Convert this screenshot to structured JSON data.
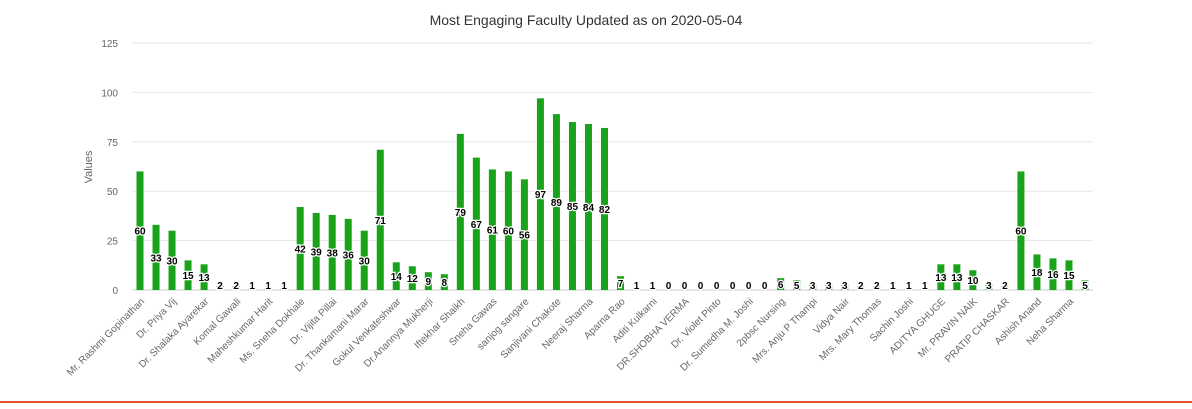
{
  "chart_data": {
    "type": "bar",
    "title": "Most Engaging Faculty Updated as on 2020-05-04",
    "xlabel": "",
    "ylabel": "Values",
    "ylim": [
      0,
      125
    ],
    "yticks": [
      0,
      25,
      50,
      75,
      100,
      125
    ],
    "grid": true,
    "legend": "none",
    "bar_color": "#1aa31a",
    "accent_rule_color": "#e0532a",
    "categories": [
      {
        "label": "Mr. Rashmi Gopinathan",
        "value": 60
      },
      {
        "label": "",
        "value": 33
      },
      {
        "label": "Dr. Priya Vij",
        "value": 30
      },
      {
        "label": "",
        "value": 15
      },
      {
        "label": "Dr. Shalaka Ayarekar",
        "value": 13
      },
      {
        "label": "",
        "value": 2
      },
      {
        "label": "Komal Gawali",
        "value": 2
      },
      {
        "label": "",
        "value": 1
      },
      {
        "label": "Maheshkumar Harit",
        "value": 1
      },
      {
        "label": "",
        "value": 1
      },
      {
        "label": "Ms. Sneha Dokhale",
        "value": 42
      },
      {
        "label": "",
        "value": 39
      },
      {
        "label": "Dr. Vijita Pillai",
        "value": 38
      },
      {
        "label": "",
        "value": 36
      },
      {
        "label": "Dr. Thankamani Marar",
        "value": 30
      },
      {
        "label": "",
        "value": 71
      },
      {
        "label": "Gokul Venkateshwar",
        "value": 14
      },
      {
        "label": "",
        "value": 12
      },
      {
        "label": "Dr.Anannya Mukherji",
        "value": 9
      },
      {
        "label": "",
        "value": 8
      },
      {
        "label": "Iftekhar Shaikh",
        "value": 79
      },
      {
        "label": "",
        "value": 67
      },
      {
        "label": "Sneha Gawas",
        "value": 61
      },
      {
        "label": "",
        "value": 60
      },
      {
        "label": "sanjog sangare",
        "value": 56
      },
      {
        "label": "",
        "value": 97
      },
      {
        "label": "Sanjivani Chakote",
        "value": 89
      },
      {
        "label": "",
        "value": 85
      },
      {
        "label": "Neeraj Sharma",
        "value": 84
      },
      {
        "label": "",
        "value": 82
      },
      {
        "label": "Aparna Rao",
        "value": 7
      },
      {
        "label": "",
        "value": 1
      },
      {
        "label": "Aditi Kulkarni",
        "value": 1
      },
      {
        "label": "",
        "value": 0
      },
      {
        "label": "DR.SHOBHA VERMA",
        "value": 0
      },
      {
        "label": "",
        "value": 0
      },
      {
        "label": "Dr. Violet Pinto",
        "value": 0
      },
      {
        "label": "",
        "value": 0
      },
      {
        "label": "Dr. Sumedha M. Joshi",
        "value": 0
      },
      {
        "label": "",
        "value": 0
      },
      {
        "label": "2pbsc Nursing",
        "value": 6
      },
      {
        "label": "",
        "value": 5
      },
      {
        "label": "Mrs. Anju P Thampi",
        "value": 3
      },
      {
        "label": "",
        "value": 3
      },
      {
        "label": "Vidya Nair",
        "value": 3
      },
      {
        "label": "",
        "value": 2
      },
      {
        "label": "Mrs. Mary Thomas",
        "value": 2
      },
      {
        "label": "",
        "value": 1
      },
      {
        "label": "Sachin Joshi",
        "value": 1
      },
      {
        "label": "",
        "value": 1
      },
      {
        "label": "ADITYA GHUGE",
        "value": 13
      },
      {
        "label": "",
        "value": 13
      },
      {
        "label": "Mr. PRAVIN NAIK",
        "value": 10
      },
      {
        "label": "",
        "value": 3
      },
      {
        "label": "PRATIP CHASKAR",
        "value": 2
      },
      {
        "label": "",
        "value": 60
      },
      {
        "label": "Ashish Anand",
        "value": 18
      },
      {
        "label": "",
        "value": 16
      },
      {
        "label": "Neha Sharma",
        "value": 15
      },
      {
        "label": "",
        "value": 5
      }
    ]
  }
}
